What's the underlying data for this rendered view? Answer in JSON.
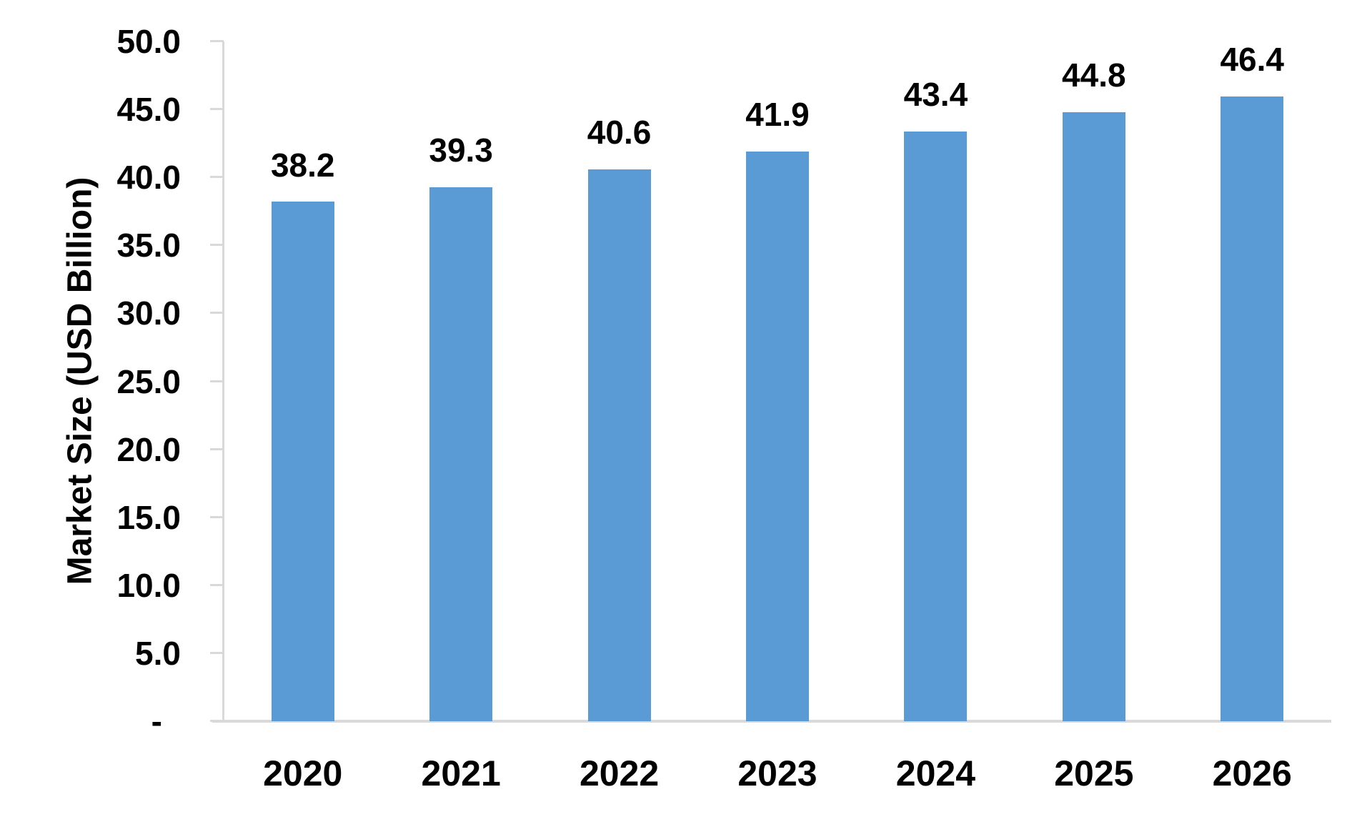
{
  "chart_data": {
    "type": "bar",
    "categories": [
      "2020",
      "2021",
      "2022",
      "2023",
      "2024",
      "2025",
      "2026"
    ],
    "values": [
      38.2,
      39.3,
      40.6,
      41.9,
      43.4,
      44.8,
      46.4
    ],
    "value_labels": [
      "38.2",
      "39.3",
      "40.6",
      "41.9",
      "43.4",
      "44.8",
      "46.4"
    ],
    "title": "",
    "xlabel": "",
    "ylabel": "Market Size (USD Billion)",
    "ylim": [
      0,
      50
    ],
    "ytick_step": 5,
    "ytick_labels": [
      "50.0",
      "45.0",
      "40.0",
      "35.0",
      "30.0",
      "25.0",
      "20.0",
      "15.0",
      "10.0",
      "5.0",
      "-"
    ],
    "grid": false,
    "legend_position": "none",
    "data_labels": true,
    "bar_color": "#5B9BD5",
    "axis_color": "#D9D9D9",
    "text_color": "#000000"
  }
}
